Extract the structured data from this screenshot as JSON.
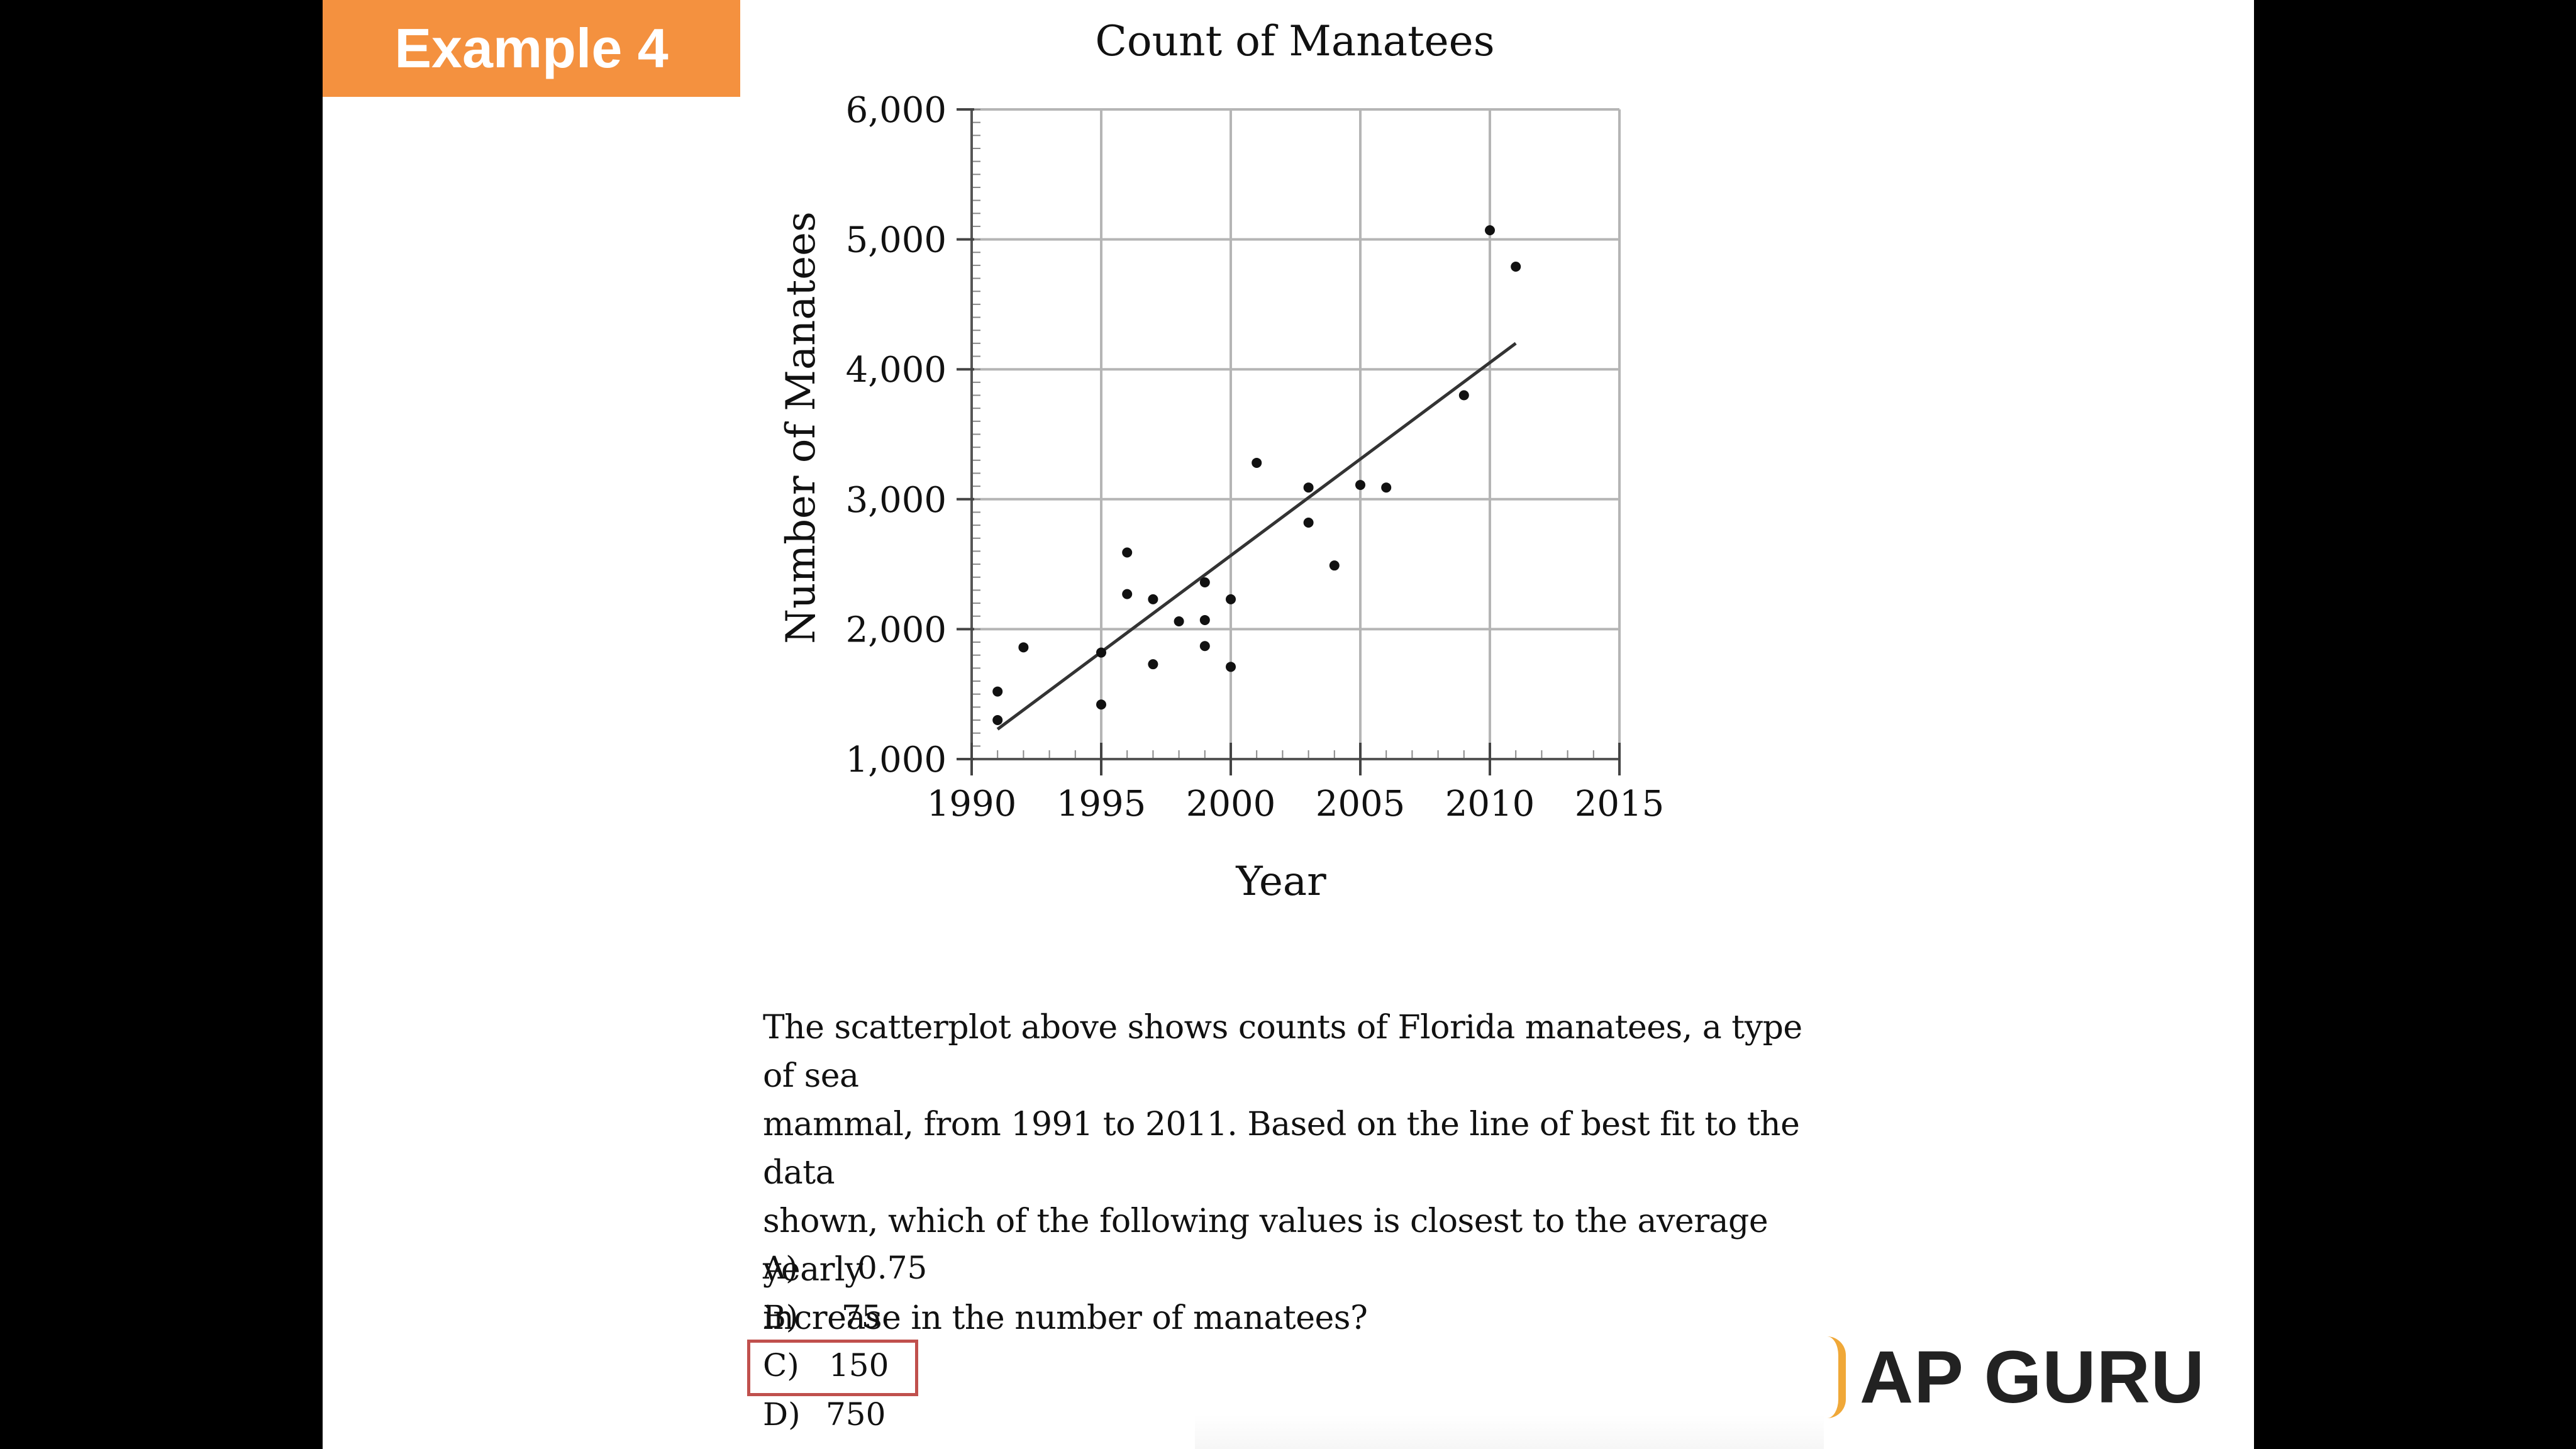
{
  "example_label": "Example 4",
  "question_lines": [
    "The scatterplot above shows counts of Florida manatees, a type of sea",
    "mammal, from 1991 to 2011. Based on the line of best fit to the data",
    "shown, which of the following values is closest to the average yearly",
    "increase in the number of manatees?"
  ],
  "choices": [
    {
      "letter": "A)",
      "value": "0.75"
    },
    {
      "letter": "B)",
      "value": "75"
    },
    {
      "letter": "C)",
      "value": "150"
    },
    {
      "letter": "D)",
      "value": "750"
    }
  ],
  "selected_choice": "C)",
  "answer_box_color": "#c0504d",
  "brand_text": "AP GURU",
  "colors": {
    "tag": "#f4913f",
    "brand_accent": "#f0a838"
  },
  "chart_data": {
    "type": "scatter",
    "title": "Count of Manatees",
    "xlabel": "Year",
    "ylabel": "Number of Manatees",
    "xlim": [
      1990,
      2015
    ],
    "ylim": [
      1000,
      6000
    ],
    "x_ticks": [
      1990,
      1995,
      2000,
      2005,
      2010,
      2015
    ],
    "y_ticks": [
      1000,
      2000,
      3000,
      4000,
      5000,
      6000
    ],
    "x_tick_labels": [
      "1990",
      "1995",
      "2000",
      "2005",
      "2010",
      "2015"
    ],
    "y_tick_labels": [
      "1,000",
      "2,000",
      "3,000",
      "4,000",
      "5,000",
      "6,000"
    ],
    "grid": true,
    "points": [
      {
        "x": 1991,
        "y": 1520
      },
      {
        "x": 1991,
        "y": 1300
      },
      {
        "x": 1992,
        "y": 1860
      },
      {
        "x": 1995,
        "y": 1820
      },
      {
        "x": 1995,
        "y": 1420
      },
      {
        "x": 1996,
        "y": 2590
      },
      {
        "x": 1996,
        "y": 2270
      },
      {
        "x": 1997,
        "y": 2230
      },
      {
        "x": 1997,
        "y": 1730
      },
      {
        "x": 1998,
        "y": 2060
      },
      {
        "x": 1999,
        "y": 2360
      },
      {
        "x": 1999,
        "y": 2070
      },
      {
        "x": 1999,
        "y": 1870
      },
      {
        "x": 2000,
        "y": 2230
      },
      {
        "x": 2000,
        "y": 1710
      },
      {
        "x": 2001,
        "y": 3280
      },
      {
        "x": 2003,
        "y": 3090
      },
      {
        "x": 2003,
        "y": 2820
      },
      {
        "x": 2004,
        "y": 2490
      },
      {
        "x": 2005,
        "y": 3110
      },
      {
        "x": 2006,
        "y": 3090
      },
      {
        "x": 2009,
        "y": 3800
      },
      {
        "x": 2010,
        "y": 5070
      },
      {
        "x": 2011,
        "y": 4790
      }
    ],
    "fit_line": {
      "x": [
        1991,
        2011
      ],
      "y": [
        1230,
        4200
      ]
    }
  }
}
